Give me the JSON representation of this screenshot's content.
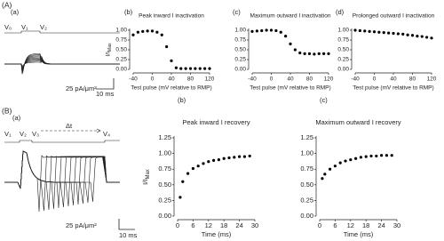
{
  "figure": {
    "panel_A": "(A)",
    "panel_B": "(B)"
  },
  "protocol_A": {
    "label": "(a)",
    "voltages": [
      "V₀",
      "V₁",
      "V₂"
    ],
    "scale_current": "25 pA/μm²",
    "scale_time": "10 ms"
  },
  "protocol_B": {
    "label": "(a)",
    "voltages": [
      "V₁",
      "V₂",
      "V₃",
      "V₄"
    ],
    "interval": "Δt",
    "scale_current": "25 pA/μm²",
    "scale_time": "10 ms"
  },
  "chart_data": [
    {
      "type": "scatter",
      "panel": "(b)",
      "title": "Peak inward I inactivation",
      "xlabel": "Test pulse (mV relative to RMP)",
      "ylabel": "I/I",
      "ylabel_sub": "Max",
      "color": "#000000",
      "x": [
        -40,
        -30,
        -20,
        -10,
        0,
        10,
        20,
        30,
        40,
        50,
        60,
        70,
        80,
        90,
        100,
        110,
        120
      ],
      "values": [
        0.88,
        0.95,
        0.97,
        0.98,
        0.98,
        0.95,
        0.88,
        0.58,
        0.22,
        0.04,
        0.02,
        0.02,
        0.02,
        0.02,
        0.02,
        0.02,
        0.02
      ],
      "xlim": [
        -40,
        120
      ],
      "ylim": [
        0,
        1
      ],
      "xticks": [
        -40,
        0,
        40,
        80,
        120
      ],
      "yticks": [
        {
          "value": 0,
          "label": "0.00"
        },
        {
          "value": 0.25,
          "label": "0.25"
        },
        {
          "value": 0.5,
          "label": "0.50"
        },
        {
          "value": 0.75,
          "label": "0.75"
        },
        {
          "value": 1,
          "label": "1.00"
        }
      ]
    },
    {
      "type": "scatter",
      "panel": "(c)",
      "title": "Maximum outward I inactivation",
      "xlabel": "Test pulse (mV relative to RMP)",
      "color": "#000000",
      "x": [
        -40,
        -30,
        -20,
        -10,
        0,
        10,
        20,
        30,
        40,
        50,
        60,
        70,
        80,
        90,
        100,
        110,
        120
      ],
      "values": [
        0.97,
        0.98,
        0.99,
        1.0,
        1.0,
        0.99,
        0.95,
        0.85,
        0.65,
        0.5,
        0.42,
        0.4,
        0.4,
        0.39,
        0.4,
        0.4,
        0.4
      ],
      "xlim": [
        -40,
        120
      ],
      "ylim": [
        0,
        1
      ],
      "xticks": [
        -40,
        0,
        40,
        80,
        120
      ],
      "yticks": [
        {
          "value": 0,
          "label": "0.00"
        },
        {
          "value": 0.25,
          "label": "0.25"
        },
        {
          "value": 0.5,
          "label": "0.50"
        },
        {
          "value": 0.75,
          "label": "0.75"
        },
        {
          "value": 1,
          "label": "1.00"
        }
      ]
    },
    {
      "type": "scatter",
      "panel": "(d)",
      "title": "Prolonged outward I inactivation",
      "xlabel": "Test pulse (mV relative to RMP)",
      "color": "#000000",
      "x": [
        -40,
        -30,
        -20,
        -10,
        0,
        10,
        20,
        30,
        40,
        50,
        60,
        70,
        80,
        90,
        100,
        110,
        120
      ],
      "values": [
        1.0,
        0.99,
        0.98,
        0.97,
        0.96,
        0.95,
        0.94,
        0.93,
        0.92,
        0.91,
        0.9,
        0.88,
        0.87,
        0.85,
        0.84,
        0.82,
        0.8
      ],
      "xlim": [
        -40,
        120
      ],
      "ylim": [
        0,
        1
      ],
      "xticks": [
        -40,
        0,
        40,
        80,
        120
      ],
      "yticks": [
        {
          "value": 0,
          "label": "0.00"
        },
        {
          "value": 0.25,
          "label": "0.25"
        },
        {
          "value": 0.5,
          "label": "0.50"
        },
        {
          "value": 0.75,
          "label": "0.75"
        },
        {
          "value": 1,
          "label": "1.00"
        }
      ]
    },
    {
      "type": "scatter",
      "panel": "(b)",
      "title": "Peak inward I recovery",
      "xlabel": "Time (ms)",
      "ylabel": "I/I",
      "ylabel_sub": "Max",
      "color": "#000000",
      "x": [
        1,
        2,
        4,
        6,
        8,
        10,
        12,
        14,
        16,
        18,
        20,
        22,
        24,
        26,
        28
      ],
      "values": [
        0.3,
        0.55,
        0.68,
        0.76,
        0.8,
        0.84,
        0.87,
        0.89,
        0.9,
        0.92,
        0.93,
        0.94,
        0.95,
        0.95,
        0.96
      ],
      "xlim": [
        0,
        30
      ],
      "ylim": [
        0,
        1.25
      ],
      "xticks": [
        0,
        6,
        12,
        18,
        24,
        30
      ],
      "yticks": [
        {
          "value": 0,
          "label": "0.00"
        },
        {
          "value": 0.25,
          "label": "0.25"
        },
        {
          "value": 0.5,
          "label": "0.50"
        },
        {
          "value": 0.75,
          "label": "0.75"
        },
        {
          "value": 1,
          "label": "1.00"
        },
        {
          "value": 1.25,
          "label": "1.25"
        }
      ]
    },
    {
      "type": "scatter",
      "panel": "(c)",
      "title": "Maximum outward I recovery",
      "xlabel": "Time (ms)",
      "color": "#000000",
      "x": [
        1,
        2,
        4,
        6,
        8,
        10,
        12,
        14,
        16,
        18,
        20,
        22,
        24,
        26,
        28
      ],
      "values": [
        0.6,
        0.67,
        0.75,
        0.8,
        0.85,
        0.88,
        0.9,
        0.92,
        0.94,
        0.95,
        0.96,
        0.96,
        0.97,
        0.97,
        0.97
      ],
      "xlim": [
        0,
        30
      ],
      "ylim": [
        0,
        1.25
      ],
      "xticks": [
        0,
        6,
        12,
        18,
        24,
        30
      ],
      "yticks": [
        {
          "value": 0,
          "label": "0.00"
        },
        {
          "value": 0.25,
          "label": "0.25"
        },
        {
          "value": 0.5,
          "label": "0.50"
        },
        {
          "value": 0.75,
          "label": "0.75"
        },
        {
          "value": 1,
          "label": "1.00"
        },
        {
          "value": 1.25,
          "label": "1.25"
        }
      ]
    }
  ]
}
